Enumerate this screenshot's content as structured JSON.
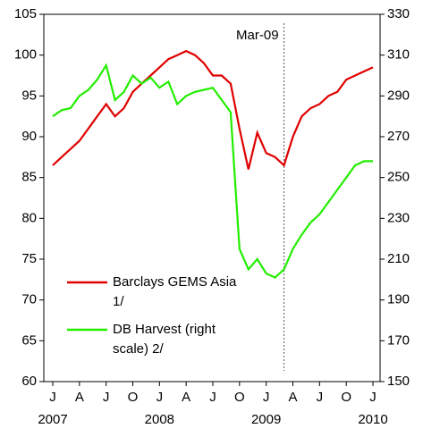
{
  "chart_data": {
    "type": "line",
    "categories": [
      "J",
      null,
      null,
      "A",
      null,
      null,
      "J",
      null,
      null,
      "O",
      null,
      null,
      "J",
      null,
      null,
      "A",
      null,
      null,
      "J",
      null,
      null,
      "O",
      null,
      null,
      "J",
      null,
      null,
      "A",
      null,
      null,
      "J",
      null,
      null,
      "O",
      null,
      null,
      "J"
    ],
    "years": [
      "2007",
      null,
      null,
      null,
      null,
      null,
      null,
      null,
      null,
      null,
      null,
      null,
      "2008",
      null,
      null,
      null,
      null,
      null,
      null,
      null,
      null,
      null,
      null,
      null,
      "2009",
      null,
      null,
      null,
      null,
      null,
      null,
      null,
      null,
      null,
      null,
      null,
      "2010"
    ],
    "series": [
      {
        "name": "Barclays GEMS Asia 1/",
        "color": "#e00000",
        "axis": "y",
        "values": [
          86.5,
          87.5,
          88.5,
          89.5,
          91,
          92.5,
          94,
          92.5,
          93.5,
          95.5,
          96.5,
          97.5,
          98.5,
          99.5,
          100,
          100.5,
          100,
          99,
          97.5,
          97.5,
          96.5,
          91,
          86,
          90.5,
          88,
          87.5,
          86.5,
          90,
          92.5,
          93.5,
          94,
          95,
          95.5,
          97,
          97.5,
          98,
          98.5
        ]
      },
      {
        "name": "DB Harvest (right scale) 2/",
        "color": "#22ee00",
        "axis": "y2",
        "values": [
          280,
          283,
          284,
          290,
          293,
          298,
          305,
          288,
          292,
          300,
          296,
          299,
          294,
          297,
          286,
          290,
          292,
          293,
          294,
          288,
          282,
          215,
          205,
          210,
          203,
          201,
          205,
          215,
          222,
          228,
          232,
          238,
          244,
          250,
          256,
          258,
          258
        ]
      }
    ],
    "ylim": [
      60,
      105
    ],
    "yticks": [
      60,
      65,
      70,
      75,
      80,
      85,
      90,
      95,
      100,
      105
    ],
    "y2lim": [
      150,
      330
    ],
    "y2ticks": [
      150,
      170,
      190,
      210,
      230,
      250,
      270,
      290,
      310,
      330
    ],
    "annotation": {
      "text": "Mar-09",
      "index": 26
    }
  }
}
